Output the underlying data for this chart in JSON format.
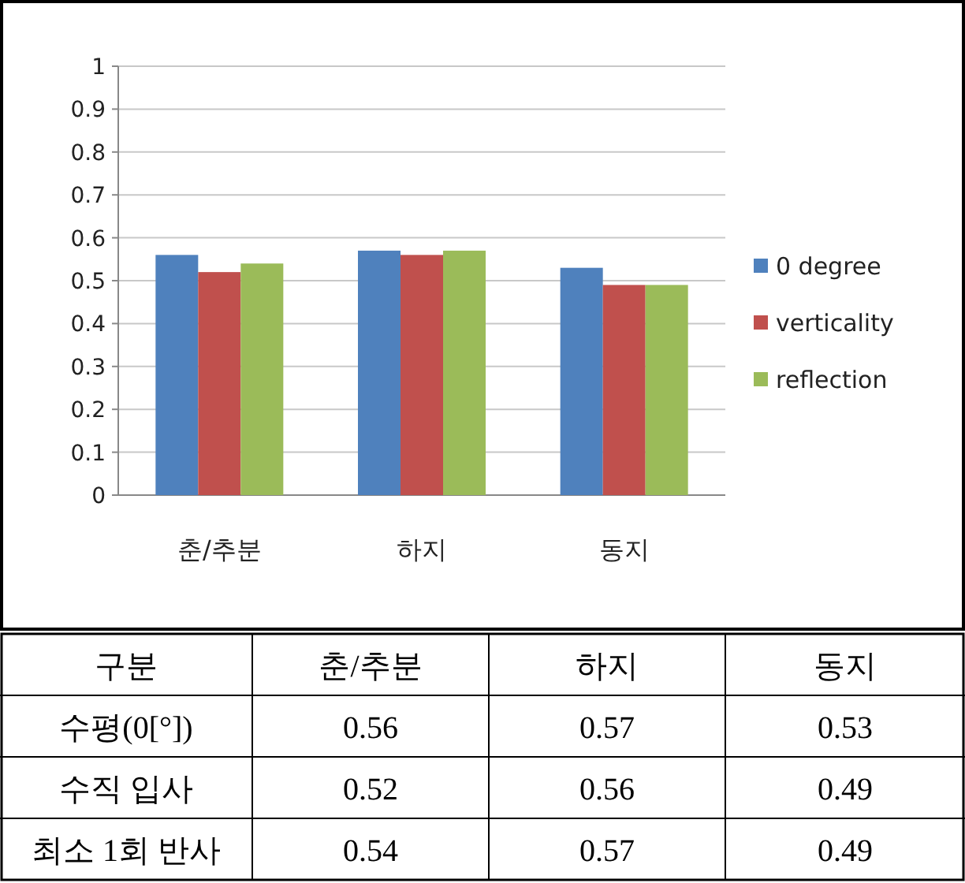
{
  "chart_data": [
    {
      "type": "bar",
      "categories": [
        "춘/추분",
        "하지",
        "동지"
      ],
      "series": [
        {
          "name": "0 degree",
          "color": "#4f81bd",
          "values": [
            0.56,
            0.57,
            0.53
          ]
        },
        {
          "name": "verticality",
          "color": "#c0504d",
          "values": [
            0.52,
            0.56,
            0.49
          ]
        },
        {
          "name": "reflection",
          "color": "#9bbb59",
          "values": [
            0.54,
            0.57,
            0.49
          ]
        }
      ],
      "ylim": [
        0,
        1
      ],
      "yticks": [
        0,
        0.1,
        0.2,
        0.3,
        0.4,
        0.5,
        0.6,
        0.7,
        0.8,
        0.9,
        1
      ],
      "grid": "y",
      "legend": "right"
    },
    {
      "type": "heatmap",
      "categories": [
        "춘/추분",
        "하지",
        "동지"
      ],
      "y_categories": [
        "수평(0[°])",
        "수직 입사",
        "최소 1회 반사"
      ],
      "cells": [
        [
          0.56,
          0.57,
          0.53
        ],
        [
          0.52,
          0.56,
          0.49
        ],
        [
          0.54,
          0.57,
          0.49
        ]
      ],
      "data_labels": true,
      "annotations": [
        "구분"
      ]
    }
  ]
}
